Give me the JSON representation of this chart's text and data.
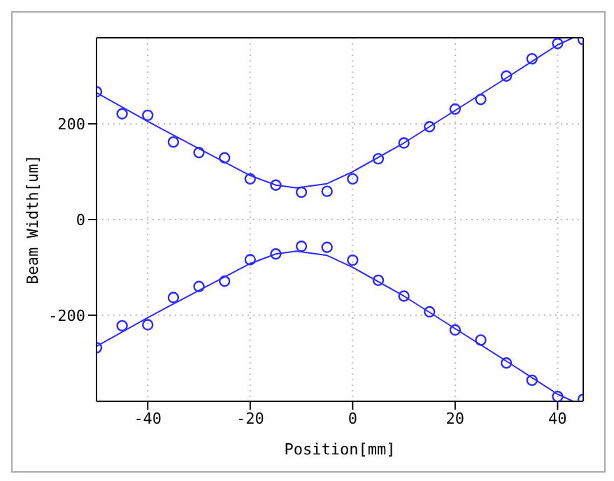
{
  "chart_data": {
    "type": "scatter",
    "xlabel": "Position[mm]",
    "ylabel": "Beam Width[um]",
    "xlim": [
      -50,
      45
    ],
    "ylim": [
      -380,
      380
    ],
    "xticks": [
      -40,
      -20,
      0,
      20,
      40
    ],
    "yticks": [
      -200,
      0,
      200
    ],
    "grid": true,
    "marker": "circle",
    "x": [
      -50,
      -45,
      -40,
      -35,
      -30,
      -25,
      -20,
      -15,
      -10,
      -5,
      0,
      5,
      10,
      15,
      20,
      25,
      30,
      35,
      40,
      45
    ],
    "series": [
      {
        "color": "#2b2bff",
        "values": [
          267,
          221,
          218,
          162,
          140,
          129,
          85,
          72,
          57,
          59,
          85,
          127,
          160,
          194,
          231,
          251,
          300,
          336,
          368,
          376
        ]
      },
      {
        "color": "#2b2bff",
        "values": [
          -268,
          -222,
          -220,
          -163,
          -140,
          -129,
          -84,
          -72,
          -56,
          -58,
          -85,
          -127,
          -160,
          -193,
          -231,
          -252,
          -300,
          -336,
          -370,
          -376
        ]
      },
      {
        "type": "line",
        "marker": "none",
        "color": "#2b2bff",
        "x": [
          -50,
          -40,
          -30,
          -20,
          -15,
          -11,
          -5,
          0,
          10,
          20,
          30,
          40,
          43
        ],
        "values": [
          265,
          205,
          148,
          92,
          72,
          66,
          75,
          100,
          160,
          228,
          296,
          365,
          380
        ]
      },
      {
        "type": "line",
        "marker": "none",
        "color": "#2b2bff",
        "x": [
          -50,
          -40,
          -30,
          -20,
          -15,
          -11,
          -5,
          0,
          10,
          20,
          30,
          40,
          43
        ],
        "values": [
          -265,
          -205,
          -148,
          -92,
          -72,
          -66,
          -75,
          -100,
          -160,
          -228,
          -296,
          -365,
          -380
        ]
      }
    ]
  }
}
